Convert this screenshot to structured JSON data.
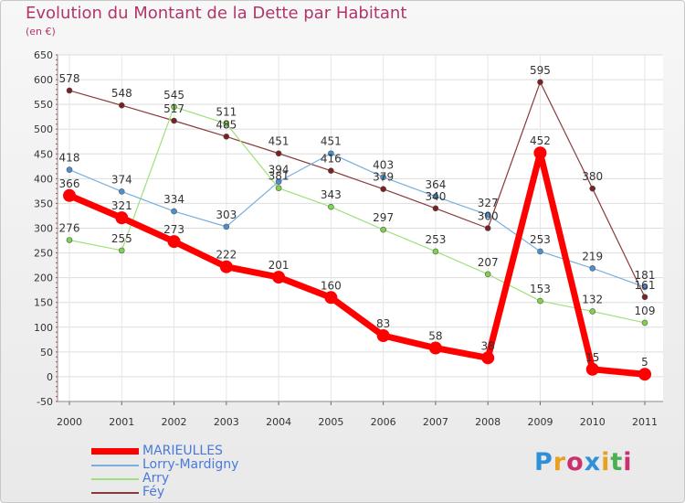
{
  "title": "Evolution du Montant de la Dette par Habitant",
  "subtitle": "(en €)",
  "logo": {
    "letters": [
      "P",
      "r",
      "o",
      "x",
      "i",
      "t",
      "i"
    ],
    "colors": [
      "#2f8fd8",
      "#e8a020",
      "#c83070",
      "#2f8fd8",
      "#e8a020",
      "#4caf50",
      "#c83070"
    ]
  },
  "chart_data": {
    "type": "line",
    "title": "Evolution du Montant de la Dette par Habitant",
    "ylabel": "(en €)",
    "xlabel": "",
    "x": [
      "2000",
      "2001",
      "2002",
      "2003",
      "2004",
      "2005",
      "2006",
      "2007",
      "2008",
      "2009",
      "2010",
      "2011"
    ],
    "ylim": [
      -50,
      650
    ],
    "yticks": [
      "650",
      "600",
      "550",
      "500",
      "450",
      "400",
      "350",
      "300",
      "250",
      "200",
      "150",
      "100",
      "50",
      "0",
      "-50"
    ],
    "grid": true,
    "legend_position": "bottom-left",
    "series": [
      {
        "name": "MARIEULLES",
        "color": "#ff0000",
        "line_color": "#ff0000",
        "width": 7,
        "values": [
          366,
          321,
          273,
          222,
          201,
          160,
          83,
          58,
          38,
          452,
          15,
          5
        ],
        "labels": [
          "366",
          "321",
          "273",
          "222",
          "201",
          "160",
          "83",
          "58",
          "38",
          "452",
          "15",
          "5"
        ]
      },
      {
        "name": "Lorry-Mardigny",
        "color": "#4a8fd0",
        "line_color": "#7aaedc",
        "width": 1.2,
        "values": [
          418,
          374,
          334,
          303,
          394,
          451,
          403,
          364,
          327,
          253,
          219,
          181
        ],
        "labels": [
          "418",
          "374",
          "334",
          "303",
          "394",
          "451",
          "403",
          "364",
          "327",
          "253",
          "219",
          "181"
        ]
      },
      {
        "name": "Arry",
        "color": "#7dd34a",
        "line_color": "#9fe07a",
        "width": 1.2,
        "values": [
          276,
          255,
          545,
          511,
          381,
          343,
          297,
          253,
          207,
          153,
          132,
          109
        ],
        "labels": [
          "276",
          "255",
          "545",
          "511",
          "381",
          "343",
          "297",
          "253",
          "207",
          "153",
          "132",
          "109"
        ]
      },
      {
        "name": "Féy",
        "color": "#7a2020",
        "line_color": "#8a3a3a",
        "width": 1.2,
        "values": [
          578,
          548,
          517,
          485,
          451,
          416,
          379,
          340,
          300,
          595,
          380,
          161
        ],
        "labels": [
          "578",
          "548",
          "517",
          "485",
          "451",
          "416",
          "379",
          "340",
          "300",
          "595",
          "380",
          "161"
        ]
      }
    ]
  }
}
